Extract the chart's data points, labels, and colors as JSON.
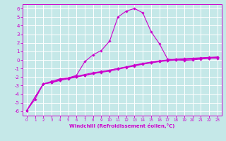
{
  "xlabel": "Windchill (Refroidissement éolien,°C)",
  "bg_color": "#c5e8e8",
  "line_color": "#cc00cc",
  "grid_color": "#ffffff",
  "xlim": [
    -0.5,
    23.5
  ],
  "ylim": [
    -6.5,
    6.5
  ],
  "yticks": [
    -6,
    -5,
    -4,
    -3,
    -2,
    -1,
    0,
    1,
    2,
    3,
    4,
    5,
    6
  ],
  "xticks": [
    0,
    1,
    2,
    3,
    4,
    5,
    6,
    7,
    8,
    9,
    10,
    11,
    12,
    13,
    14,
    15,
    16,
    17,
    18,
    19,
    20,
    21,
    22,
    23
  ],
  "line1_x": [
    0,
    1,
    2,
    3,
    4,
    5,
    6,
    7,
    8,
    9,
    10,
    11,
    12,
    13,
    14,
    15,
    16,
    17,
    18,
    19,
    20,
    21,
    22,
    23
  ],
  "line1_y": [
    -5.9,
    -4.6,
    -2.8,
    -2.5,
    -2.2,
    -2.1,
    -1.8,
    -0.2,
    0.6,
    1.1,
    2.2,
    5.0,
    5.7,
    6.0,
    5.5,
    3.3,
    1.9,
    0.1,
    0.0,
    -0.05,
    0.0,
    0.1,
    0.2,
    0.2
  ],
  "line2_x": [
    0,
    2,
    3,
    4,
    5,
    6,
    7,
    8,
    9,
    10,
    11,
    12,
    13,
    14,
    15,
    16,
    17,
    18,
    19,
    20,
    21,
    22,
    23
  ],
  "line2_y": [
    -5.9,
    -2.8,
    -2.6,
    -2.3,
    -2.1,
    -1.95,
    -1.8,
    -1.6,
    -1.4,
    -1.2,
    -1.0,
    -0.8,
    -0.6,
    -0.4,
    -0.25,
    -0.1,
    0.0,
    0.1,
    0.15,
    0.2,
    0.25,
    0.3,
    0.35
  ],
  "line3_x": [
    0,
    2,
    3,
    4,
    5,
    6,
    7,
    8,
    9,
    10,
    11,
    12,
    13,
    14,
    15,
    16,
    17,
    18,
    19,
    20,
    21,
    22,
    23
  ],
  "line3_y": [
    -5.9,
    -2.8,
    -2.6,
    -2.35,
    -2.1,
    -1.9,
    -1.7,
    -1.5,
    -1.35,
    -1.2,
    -1.0,
    -0.85,
    -0.65,
    -0.45,
    -0.3,
    -0.15,
    -0.05,
    0.05,
    0.1,
    0.15,
    0.2,
    0.25,
    0.3
  ],
  "line4_x": [
    0,
    2,
    3,
    4,
    5,
    6,
    7,
    8,
    9,
    10,
    11,
    12,
    13,
    14,
    15,
    16,
    17,
    18,
    19,
    20,
    21,
    22,
    23
  ],
  "line4_y": [
    -5.9,
    -2.8,
    -2.65,
    -2.4,
    -2.2,
    -2.0,
    -1.8,
    -1.6,
    -1.45,
    -1.3,
    -1.1,
    -0.9,
    -0.7,
    -0.5,
    -0.35,
    -0.2,
    -0.1,
    0.0,
    0.05,
    0.1,
    0.15,
    0.2,
    0.25
  ]
}
